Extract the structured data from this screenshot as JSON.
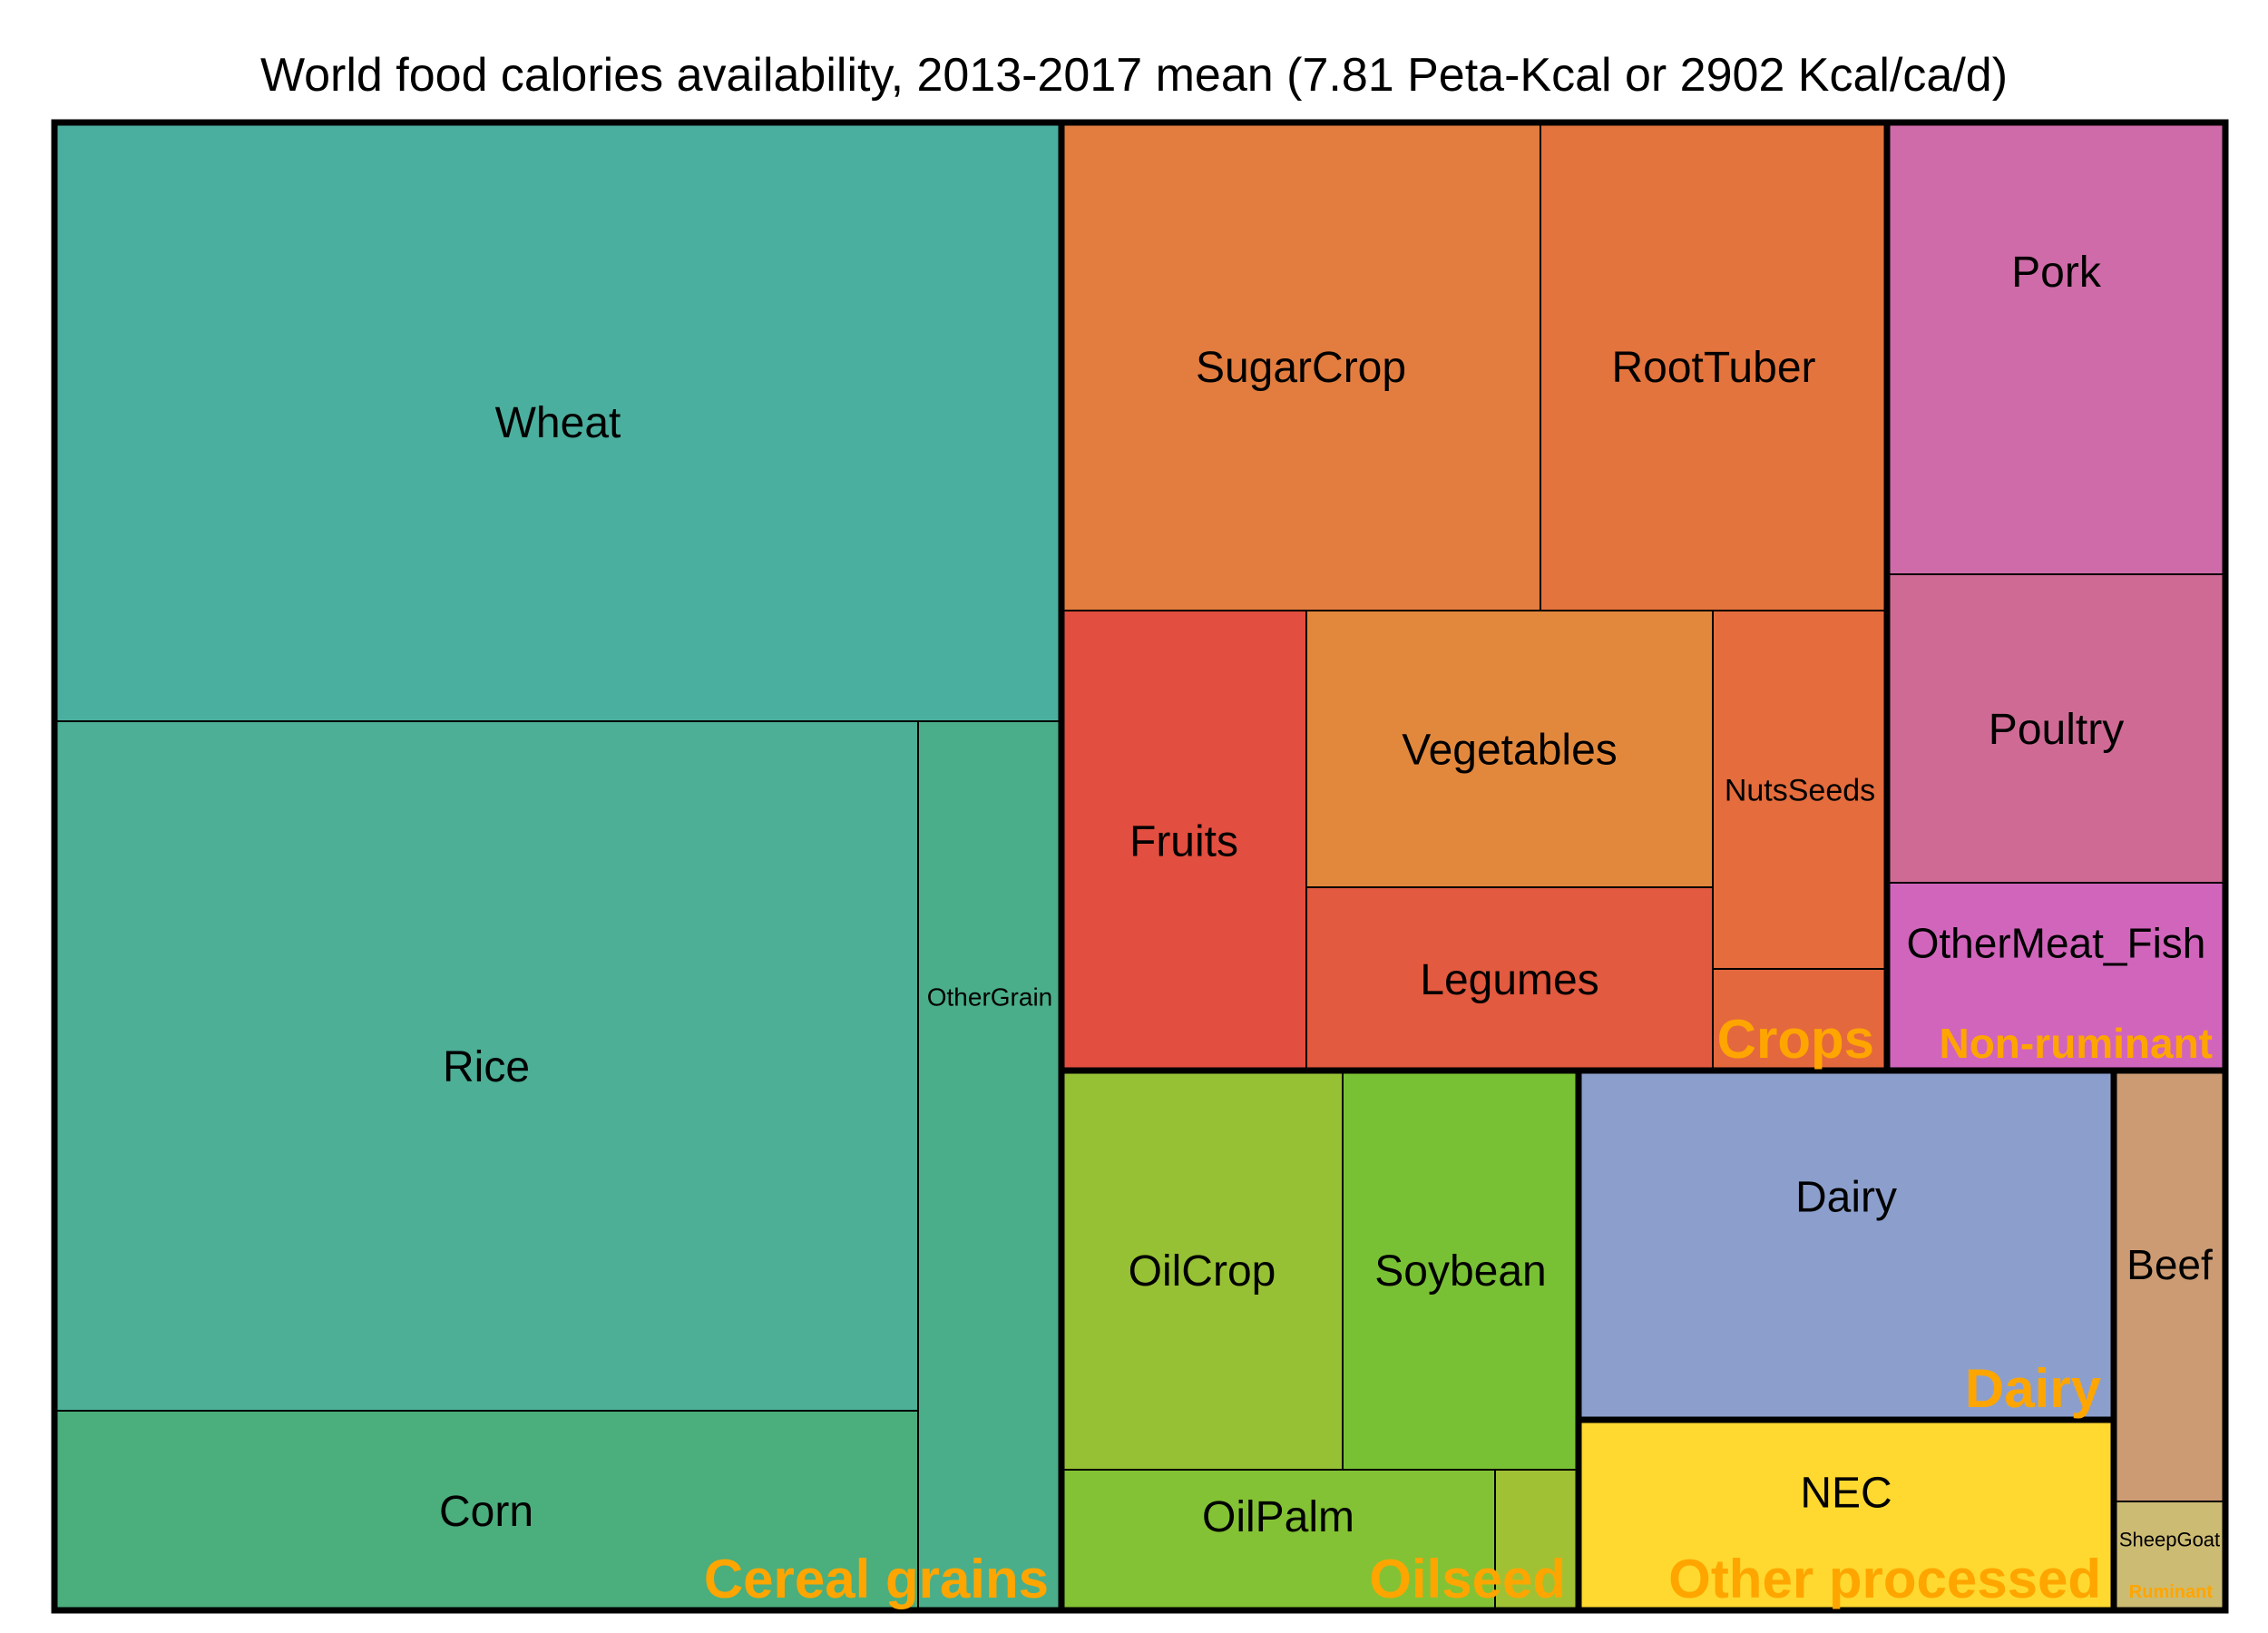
{
  "chart_data": {
    "type": "treemap",
    "title": "World food calories availability, 2013-2017 mean (7.81 Peta-Kcal or 2902 Kcal/ca/d)",
    "group_label_color": "#FFA500",
    "groups": [
      {
        "name": "Cereal grains",
        "items": [
          {
            "name": "Wheat",
            "value": 18.3,
            "color": "#4BAF9F"
          },
          {
            "name": "Rice",
            "value": 18.2,
            "color": "#4CAF96"
          },
          {
            "name": "Corn",
            "value": 5.4,
            "color": "#4BAE7D"
          },
          {
            "name": "OtherGrain",
            "value": 4.1,
            "color": "#4BAE8A"
          }
        ]
      },
      {
        "name": "Crops",
        "items": [
          {
            "name": "SugarCrop",
            "value": 7.5,
            "color": "#E27D3F"
          },
          {
            "name": "RootTuber",
            "value": 5.4,
            "color": "#E3743D"
          },
          {
            "name": "Fruits",
            "value": 3.3,
            "color": "#E24E3F"
          },
          {
            "name": "Vegetables",
            "value": 3.5,
            "color": "#E2883D"
          },
          {
            "name": "Legumes",
            "value": 2.5,
            "color": "#E25A3F"
          },
          {
            "name": "NutsSeeds",
            "value": 1.9,
            "color": "#E46C3D"
          },
          {
            "name": "",
            "value": 0.4,
            "color": "#E4683D"
          }
        ]
      },
      {
        "name": "Non-ruminant",
        "items": [
          {
            "name": "Pork",
            "value": 4.1,
            "color": "#CF6BA8"
          },
          {
            "name": "Poultry",
            "value": 2.8,
            "color": "#CF6A95"
          },
          {
            "name": "OtherMeat_Fish",
            "value": 1.7,
            "color": "#D165BC"
          }
        ]
      },
      {
        "name": "Oilseed",
        "items": [
          {
            "name": "OilCrop",
            "value": 3.7,
            "color": "#97C134"
          },
          {
            "name": "Soybean",
            "value": 3.0,
            "color": "#79C134"
          },
          {
            "name": "OilPalm",
            "value": 2.2,
            "color": "#83C234"
          },
          {
            "name": "",
            "value": 0.4,
            "color": "#A0C134"
          }
        ]
      },
      {
        "name": "Dairy",
        "items": [
          {
            "name": "Dairy",
            "value": 6.3,
            "color": "#8C9FCC"
          }
        ]
      },
      {
        "name": "Other processed",
        "items": [
          {
            "name": "NEC",
            "value": 3.5,
            "color": "#FFD92F"
          }
        ]
      },
      {
        "name": "Ruminant",
        "items": [
          {
            "name": "Beef",
            "value": 1.7,
            "color": "#CC9B73"
          },
          {
            "name": "SheepGoat",
            "value": 0.3,
            "color": "#CCBB73"
          }
        ]
      }
    ]
  }
}
